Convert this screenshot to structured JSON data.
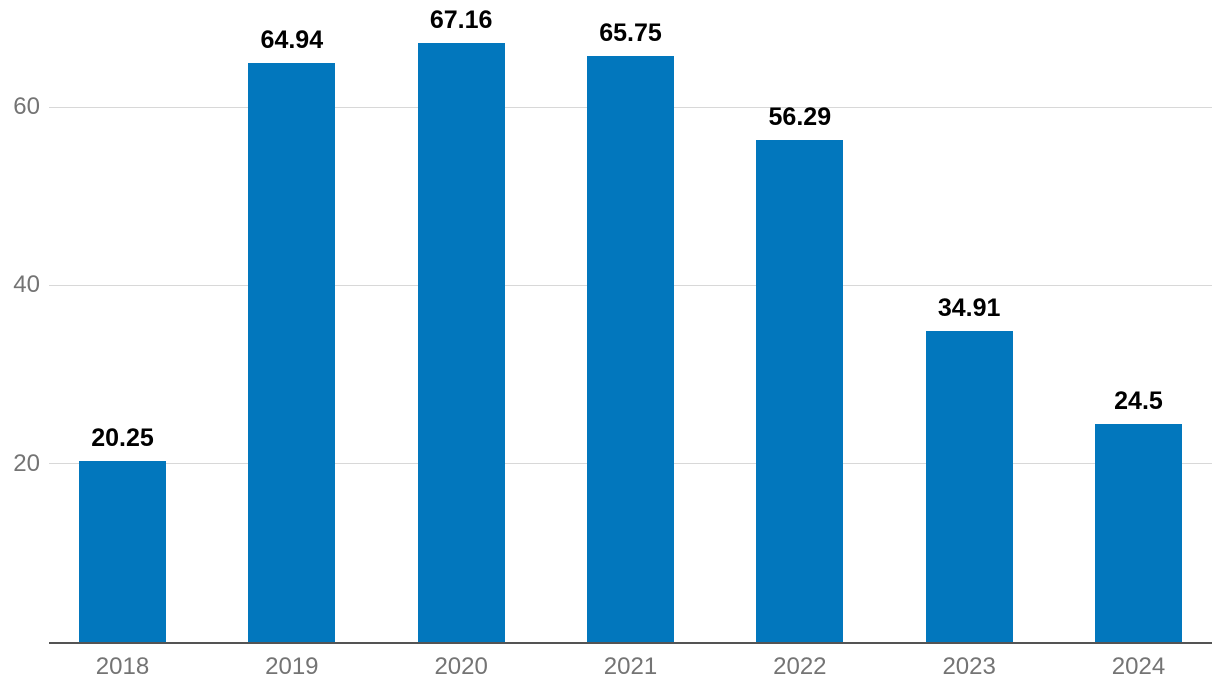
{
  "chart_data": {
    "type": "bar",
    "title": "",
    "xlabel": "",
    "ylabel": "",
    "categories": [
      "2018",
      "2019",
      "2020",
      "2021",
      "2022",
      "2023",
      "2024"
    ],
    "values": [
      20.25,
      64.94,
      67.16,
      65.75,
      56.29,
      34.91,
      24.5
    ],
    "value_labels": [
      "20.25",
      "64.94",
      "67.16",
      "65.75",
      "56.29",
      "34.91",
      "24.5"
    ],
    "ylim": [
      0,
      72
    ],
    "yticks": [
      20,
      40,
      60
    ],
    "grid": true,
    "legend": false,
    "colors": {
      "bar": "#0277bd",
      "gridline": "#d8d8d8",
      "axis_line": "#545454",
      "tick_label": "#747474",
      "value_label": "#000000",
      "background": "#ffffff"
    }
  }
}
